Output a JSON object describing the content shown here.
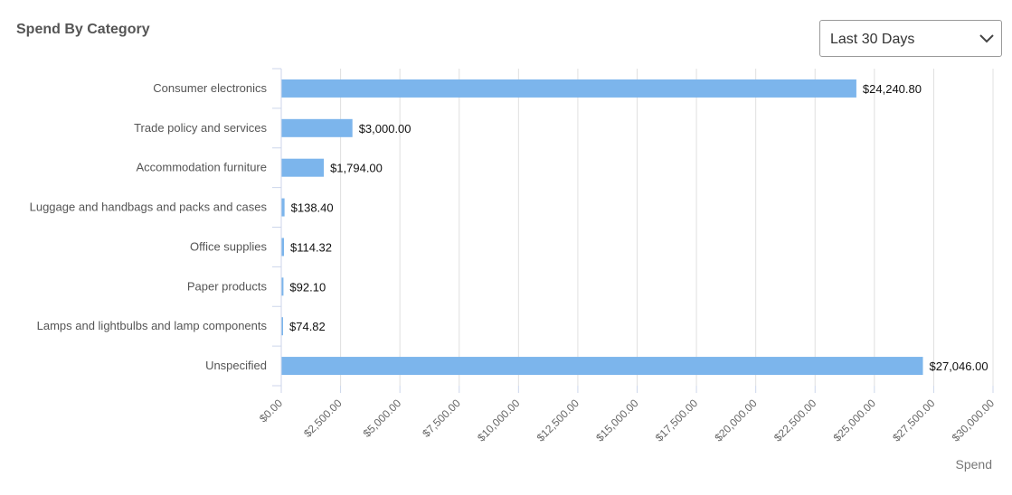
{
  "header": {
    "title": "Spend By Category",
    "range_select": {
      "selected": "Last 30 Days"
    }
  },
  "chart_data": {
    "type": "bar",
    "orientation": "horizontal",
    "title": "Spend By Category",
    "xlabel": "Spend",
    "ylabel": "",
    "xlim": [
      0,
      30000
    ],
    "grid": true,
    "legend": "none",
    "bar_color": "#7cb5ec",
    "categories": [
      "Consumer electronics",
      "Trade policy and services",
      "Accommodation furniture",
      "Luggage and handbags and packs and cases",
      "Office supplies",
      "Paper products",
      "Lamps and lightbulbs and lamp components",
      "Unspecified"
    ],
    "values": [
      24240.8,
      3000.0,
      1794.0,
      138.4,
      114.32,
      92.1,
      74.82,
      27046.0
    ],
    "data_labels": [
      "$24,240.80",
      "$3,000.00",
      "$1,794.00",
      "$138.40",
      "$114.32",
      "$92.10",
      "$74.82",
      "$27,046.00"
    ],
    "tick_values": [
      0,
      2500,
      5000,
      7500,
      10000,
      12500,
      15000,
      17500,
      20000,
      22500,
      25000,
      27500,
      30000
    ],
    "tick_labels": [
      "$0.00",
      "$2,500.00",
      "$5,000.00",
      "$7,500.00",
      "$10,000.00",
      "$12,500.00",
      "$15,000.00",
      "$17,500.00",
      "$20,000.00",
      "$22,500.00",
      "$25,000.00",
      "$27,500.00",
      "$30,000.00"
    ]
  }
}
